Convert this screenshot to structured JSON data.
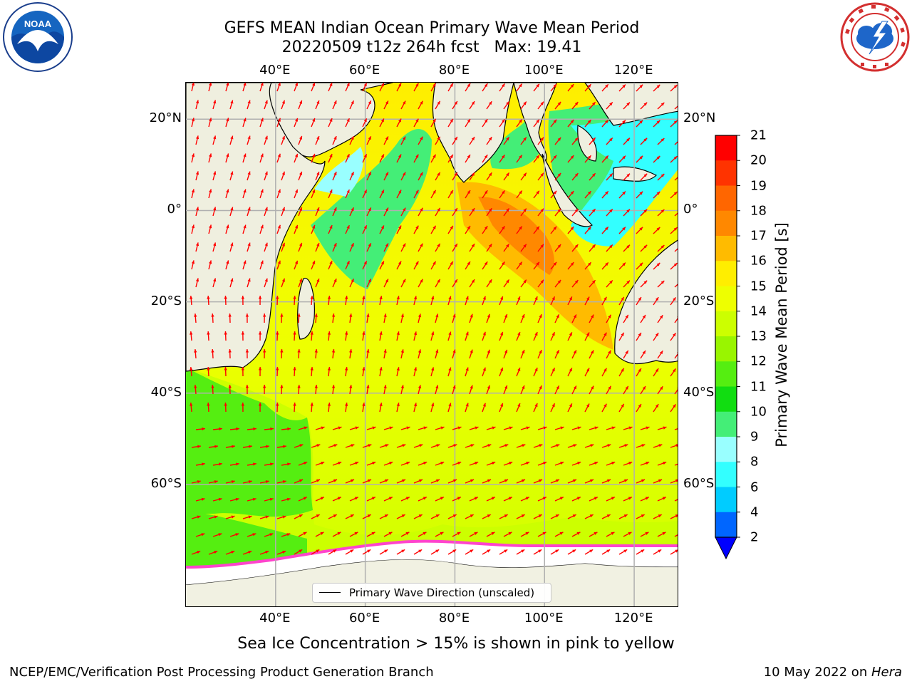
{
  "title": {
    "line1": "GEFS MEAN Indian Ocean Primary Wave Mean Period",
    "line2": "20220509 t12z 264h fcst   Max: 19.41"
  },
  "axes": {
    "lon_labels": [
      "40°E",
      "60°E",
      "80°E",
      "100°E",
      "120°E"
    ],
    "lat_labels": [
      "20°N",
      "0°",
      "20°S",
      "40°S",
      "60°S"
    ],
    "lon_values": [
      40,
      60,
      80,
      100,
      120
    ],
    "lat_values": [
      20,
      0,
      -20,
      -40,
      -60
    ],
    "lon_range": [
      20,
      130
    ],
    "lat_range": [
      28,
      -87
    ]
  },
  "legend": {
    "label": "Primary Wave Direction (unscaled)"
  },
  "colorbar": {
    "label": "Primary Wave Mean Period [s]",
    "ticks": [
      "2",
      "4",
      "6",
      "8",
      "9",
      "10",
      "11",
      "12",
      "13",
      "14",
      "15",
      "16",
      "17",
      "18",
      "19",
      "20",
      "21"
    ],
    "colors": [
      "#0066ff",
      "#00ccff",
      "#33ffff",
      "#99ffff",
      "#44ee77",
      "#11dd11",
      "#55ee11",
      "#99f500",
      "#ccff00",
      "#eeff00",
      "#ffee00",
      "#ffbb00",
      "#ff8800",
      "#ff6600",
      "#ff3300",
      "#ff0000"
    ],
    "under_color": "#0000ff"
  },
  "colors": {
    "land": "#efefdf",
    "sea_ice": "#ffffff",
    "ice_edge": "#ff44cc",
    "vectors": "#ff0000",
    "grid": "#b0b0b0"
  },
  "footnote": "Sea Ice Concentration > 15% is shown in pink to yellow",
  "footer": {
    "left": "NCEP/EMC/Verification Post Processing Product Generation Branch",
    "date": "10 May 2022 on ",
    "machine": "Hera"
  },
  "logos": {
    "noaa_text": "NOAA"
  }
}
